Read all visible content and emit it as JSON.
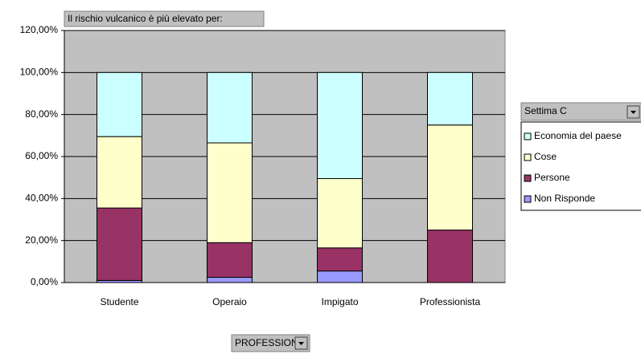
{
  "chart_data": {
    "type": "stacked_bar",
    "title": "Il rischio vulcanico è più elevato per:",
    "legend_title": "Settima C",
    "x_field": "PROFESSIONE",
    "categories": [
      "Studente",
      "Operaio",
      "Impigato",
      "Professionista"
    ],
    "series": [
      {
        "name": "Economia del paese",
        "color": "#ccffff",
        "values": [
          30.5,
          33.5,
          50.5,
          25
        ]
      },
      {
        "name": "Cose",
        "color": "#ffffcc",
        "values": [
          34,
          47.5,
          33,
          50
        ]
      },
      {
        "name": "Persone",
        "color": "#993366",
        "values": [
          34.5,
          16.5,
          11,
          25
        ]
      },
      {
        "name": "Non Risponde",
        "color": "#9999ff",
        "values": [
          1,
          2.5,
          5.5,
          0
        ]
      }
    ],
    "ylim": [
      0,
      120
    ],
    "yticks": [
      {
        "value": 0,
        "label": "0,00%"
      },
      {
        "value": 20,
        "label": "20,00%"
      },
      {
        "value": 40,
        "label": "40,00%"
      },
      {
        "value": 60,
        "label": "60,00%"
      },
      {
        "value": 80,
        "label": "80,00%"
      },
      {
        "value": 100,
        "label": "100,00%"
      },
      {
        "value": 120,
        "label": "120,00%"
      }
    ],
    "grid": true,
    "legend": "right",
    "plot_background": "#c0c0c0"
  }
}
